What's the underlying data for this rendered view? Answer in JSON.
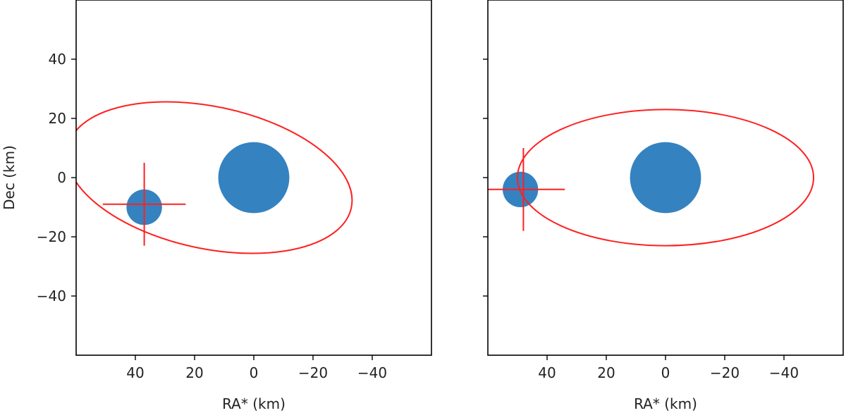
{
  "chart_data": [
    {
      "type": "scatter",
      "xlabel": "RA* (km)",
      "ylabel": "Dec (km)",
      "xlim": [
        60,
        -60
      ],
      "ylim": [
        -60,
        60
      ],
      "xticks": [
        40,
        20,
        0,
        -20,
        -40
      ],
      "xtick_labels": [
        "40",
        "20",
        "0",
        "−20",
        "−40"
      ],
      "yticks": [
        40,
        20,
        0,
        -20,
        -40
      ],
      "ytick_labels": [
        "40",
        "20",
        "0",
        "−20",
        "−40"
      ],
      "primary": {
        "x": 0,
        "y": 0,
        "radius_km": 12,
        "color": "#3582c0"
      },
      "satellite": {
        "x": 37,
        "y": -10,
        "radius_km": 6,
        "color": "#3582c0"
      },
      "orbit": {
        "cx": 15,
        "cy": 0,
        "a": 49,
        "b": 24,
        "angle_deg": -12,
        "color": "#ff2020"
      },
      "cross": {
        "x": 37,
        "y": -9,
        "half_width_km": 14,
        "half_height_km": 14,
        "color": "#ff2020"
      }
    },
    {
      "type": "scatter",
      "xlabel": "RA* (km)",
      "ylabel": "",
      "xlim": [
        60,
        -60
      ],
      "ylim": [
        -60,
        60
      ],
      "xticks": [
        40,
        20,
        0,
        -20,
        -40
      ],
      "xtick_labels": [
        "40",
        "20",
        "0",
        "−20",
        "−40"
      ],
      "yticks": [
        40,
        20,
        0,
        -20,
        -40
      ],
      "ytick_labels": [],
      "primary": {
        "x": 0,
        "y": 0,
        "radius_km": 12,
        "color": "#3582c0"
      },
      "satellite": {
        "x": 49,
        "y": -4,
        "radius_km": 6,
        "color": "#3582c0"
      },
      "orbit": {
        "cx": 0,
        "cy": 0,
        "a": 50,
        "b": 23,
        "angle_deg": 0,
        "color": "#ff2020"
      },
      "cross": {
        "x": 48,
        "y": -4,
        "half_width_km": 14,
        "half_height_km": 14,
        "color": "#ff2020"
      }
    }
  ]
}
